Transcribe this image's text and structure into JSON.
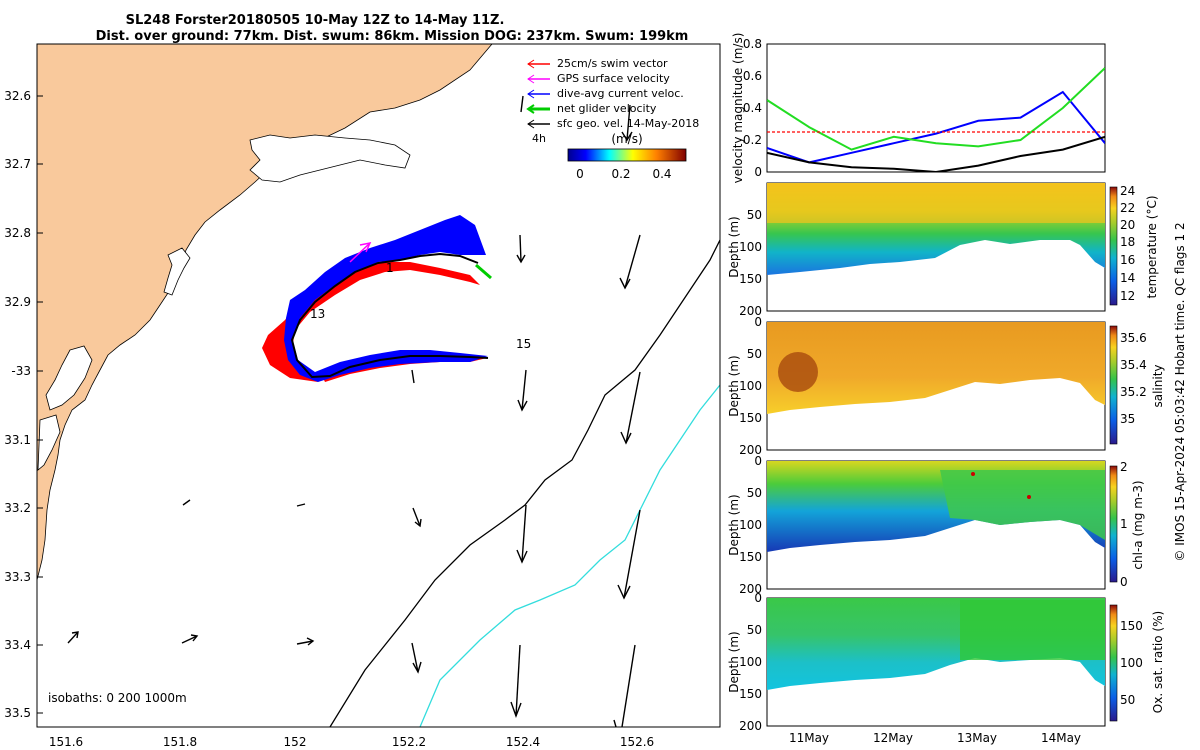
{
  "title": {
    "line1": "SL248 Forster20180505 10-May 12Z to 14-May 11Z.",
    "line2": "Dist. over ground: 77km. Dist. swum: 86km. Mission DOG: 237km. Swum: 199km"
  },
  "map": {
    "lat_ticks": [
      "32.6",
      "32.7",
      "32.8",
      "32.9",
      "-33",
      "33.1",
      "33.2",
      "33.3",
      "33.4",
      "33.5"
    ],
    "lon_ticks": [
      "151.6",
      "151.8",
      "152",
      "152.2",
      "152.4",
      "152.6"
    ],
    "legend": [
      {
        "label": "25cm/s swim vector",
        "color": "#ff0000"
      },
      {
        "label": "GPS surface velocity",
        "color": "#ff00ff"
      },
      {
        "label": "dive-avg current veloc.",
        "color": "#0000ff"
      },
      {
        "label": "net glider velocity",
        "color": "#00cc00"
      },
      {
        "label": "sfc geo. vel. 14-May-2018",
        "color": "#000000"
      }
    ],
    "colorbar_label": "(m/s)",
    "colorbar_ticks": [
      "0",
      "0.2",
      "0.4"
    ],
    "time_label": "4h",
    "track_labels": [
      "1",
      "13",
      "15"
    ],
    "isobaths": "isobaths: 0   200  1000m",
    "colors": {
      "land": "#f9c99c",
      "track_red": "#ff0000",
      "track_blue": "#0000ff",
      "isobath_1000": "#33dddd"
    }
  },
  "chart_data": [
    {
      "type": "line",
      "ylabel": "velocity magnitude (m/s)",
      "ylim": [
        0,
        0.8
      ],
      "yticks": [
        "0",
        "0.2",
        "0.4",
        "0.6",
        "0.8"
      ],
      "x": [
        0,
        0.5,
        1,
        1.5,
        2,
        2.5,
        3,
        3.5,
        4
      ],
      "series": [
        {
          "name": "dive-avg current",
          "color": "#0000ff",
          "values": [
            0.15,
            0.06,
            0.12,
            0.18,
            0.24,
            0.32,
            0.34,
            0.5,
            0.18
          ]
        },
        {
          "name": "geostrophic",
          "color": "#000000",
          "values": [
            0.12,
            0.06,
            0.03,
            0.02,
            0.0,
            0.04,
            0.1,
            0.14,
            0.22
          ]
        },
        {
          "name": "net glider",
          "color": "#22dd22",
          "values": [
            0.45,
            0.28,
            0.14,
            0.22,
            0.18,
            0.16,
            0.2,
            0.4,
            0.65
          ]
        },
        {
          "name": "swim threshold",
          "color": "#ff0000",
          "values": [
            0.25,
            0.25,
            0.25,
            0.25,
            0.25,
            0.25,
            0.25,
            0.25,
            0.25
          ]
        }
      ]
    },
    {
      "type": "heatmap",
      "ylabel": "Depth (m)",
      "yticks": [
        "50",
        "100",
        "150",
        "200"
      ],
      "colorbar_label": "temperature (°C)",
      "colorbar_ticks": [
        "12",
        "14",
        "16",
        "18",
        "20",
        "22",
        "24"
      ],
      "clim": [
        11,
        24.5
      ]
    },
    {
      "type": "heatmap",
      "ylabel": "Depth (m)",
      "yticks": [
        "0",
        "50",
        "100",
        "150",
        "200"
      ],
      "colorbar_label": "salinity",
      "colorbar_ticks": [
        "35",
        "35.2",
        "35.4",
        "35.6"
      ],
      "clim": [
        34.85,
        35.7
      ]
    },
    {
      "type": "heatmap",
      "ylabel": "Depth (m)",
      "yticks": [
        "0",
        "50",
        "100",
        "150",
        "200"
      ],
      "colorbar_label": "chl-a (mg m-3)",
      "colorbar_ticks": [
        "0",
        "1",
        "2"
      ],
      "clim": [
        0,
        2
      ]
    },
    {
      "type": "heatmap",
      "ylabel": "Depth (m)",
      "yticks": [
        "0",
        "50",
        "100",
        "150",
        "200"
      ],
      "xticks": [
        "11May",
        "12May",
        "13May",
        "14May"
      ],
      "colorbar_label": "Ox. sat. ratio (%)",
      "colorbar_ticks": [
        "50",
        "100",
        "150"
      ],
      "clim": [
        20,
        175
      ]
    }
  ],
  "side_note": "© IMOS 15-Apr-2024 05:03:42 Hobart time. QC flags 1  2"
}
